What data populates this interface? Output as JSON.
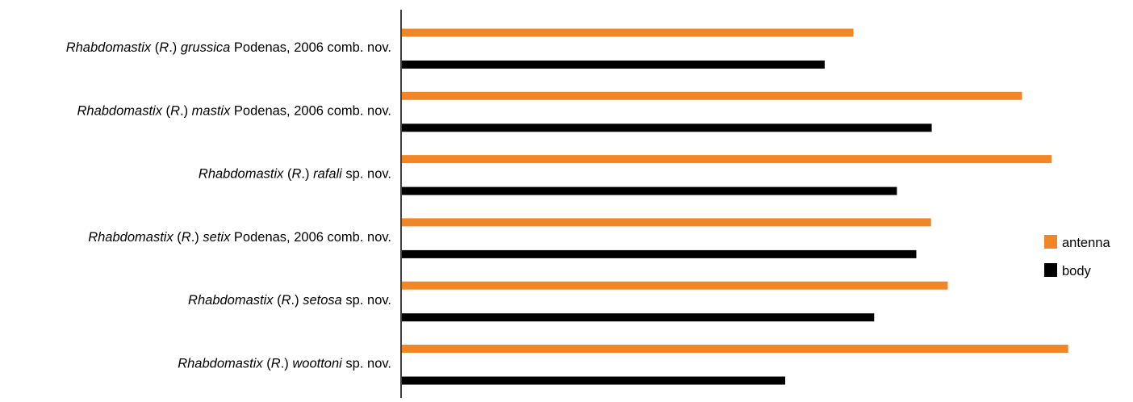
{
  "chart_data": {
    "type": "bar",
    "orientation": "horizontal",
    "grid": false,
    "legend_position": "right",
    "categories": [
      [
        {
          "t": "Rhabdomastix",
          "i": true
        },
        {
          "t": " (",
          "i": false
        },
        {
          "t": "R",
          "i": true
        },
        {
          "t": ".) ",
          "i": false
        },
        {
          "t": "grussica",
          "i": true
        },
        {
          "t": " Podenas, 2006 comb. nov.",
          "i": false
        }
      ],
      [
        {
          "t": "Rhabdomastix",
          "i": true
        },
        {
          "t": " (",
          "i": false
        },
        {
          "t": "R",
          "i": true
        },
        {
          "t": ".) ",
          "i": false
        },
        {
          "t": "mastix",
          "i": true
        },
        {
          "t": " Podenas, 2006 comb. nov.",
          "i": false
        }
      ],
      [
        {
          "t": "Rhabdomastix",
          "i": true
        },
        {
          "t": " (",
          "i": false
        },
        {
          "t": "R",
          "i": true
        },
        {
          "t": ".) ",
          "i": false
        },
        {
          "t": "rafali",
          "i": true
        },
        {
          "t": " sp. nov.",
          "i": false
        }
      ],
      [
        {
          "t": "Rhabdomastix",
          "i": true
        },
        {
          "t": " (",
          "i": false
        },
        {
          "t": "R",
          "i": true
        },
        {
          "t": ".) ",
          "i": false
        },
        {
          "t": "setix",
          "i": true
        },
        {
          "t": " Podenas, 2006 comb. nov.",
          "i": false
        }
      ],
      [
        {
          "t": "Rhabdomastix",
          "i": true
        },
        {
          "t": " (",
          "i": false
        },
        {
          "t": "R",
          "i": true
        },
        {
          "t": ".) ",
          "i": false
        },
        {
          "t": "setosa",
          "i": true
        },
        {
          "t": " sp. nov.",
          "i": false
        }
      ],
      [
        {
          "t": "Rhabdomastix",
          "i": true
        },
        {
          "t": " (",
          "i": false
        },
        {
          "t": "R",
          "i": true
        },
        {
          "t": ".) ",
          "i": false
        },
        {
          "t": "woottoni",
          "i": true
        },
        {
          "t": " sp. nov.",
          "i": false
        }
      ]
    ],
    "series": [
      {
        "name": "antenna",
        "color": "#F08626",
        "values": [
          67.5,
          92.7,
          97.1,
          79.1,
          81.6,
          99.6
        ]
      },
      {
        "name": "body",
        "color": "#000000",
        "values": [
          63.2,
          79.2,
          74.0,
          76.9,
          70.6,
          57.3
        ]
      }
    ],
    "xlim": [
      0,
      100
    ]
  }
}
